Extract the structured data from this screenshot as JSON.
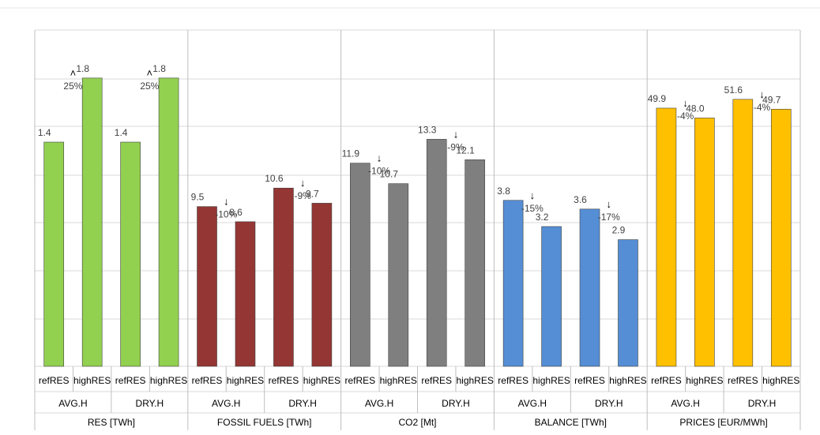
{
  "chart_data": {
    "type": "bar",
    "xlabel": "",
    "ylabel": "",
    "grid": true,
    "legend": "none",
    "series_labels": [
      "refRES",
      "highRES"
    ],
    "groups": [
      {
        "name": "RES [TWh]",
        "color": "#92D050",
        "max": 2.1,
        "subgroups": [
          {
            "name": "AVG.H",
            "values": [
              1.4,
              1.8
            ],
            "value_labels": [
              "1.4",
              "1.8"
            ],
            "change": "25%",
            "direction": "up"
          },
          {
            "name": "DRY.H",
            "values": [
              1.4,
              1.8
            ],
            "value_labels": [
              "1.4",
              "1.8"
            ],
            "change": "25%",
            "direction": "up"
          }
        ]
      },
      {
        "name": "FOSSIL FUELS [TWh]",
        "color": "#943634",
        "max": 20,
        "subgroups": [
          {
            "name": "AVG.H",
            "values": [
              9.5,
              8.6
            ],
            "value_labels": [
              "9.5",
              "8.6"
            ],
            "change": "-10%",
            "direction": "down"
          },
          {
            "name": "DRY.H",
            "values": [
              10.6,
              9.7
            ],
            "value_labels": [
              "10.6",
              "9.7"
            ],
            "change": "-9%",
            "direction": "down"
          }
        ]
      },
      {
        "name": "CO2 [Mt]",
        "color": "#7F7F7F",
        "max": 19.7,
        "subgroups": [
          {
            "name": "AVG.H",
            "values": [
              11.9,
              10.7
            ],
            "value_labels": [
              "11.9",
              "10.7"
            ],
            "change": "-10%",
            "direction": "down"
          },
          {
            "name": "DRY.H",
            "values": [
              13.3,
              12.1
            ],
            "value_labels": [
              "13.3",
              "12.1"
            ],
            "change": "-9%",
            "direction": "down"
          }
        ]
      },
      {
        "name": "BALANCE [TWh]",
        "color": "#558ED5",
        "max": 7.7,
        "subgroups": [
          {
            "name": "AVG.H",
            "values": [
              3.8,
              3.2
            ],
            "value_labels": [
              "3.8",
              "3.2"
            ],
            "change": "-15%",
            "direction": "down"
          },
          {
            "name": "DRY.H",
            "values": [
              3.6,
              2.9
            ],
            "value_labels": [
              "3.6",
              "2.9"
            ],
            "change": "-17%",
            "direction": "down"
          }
        ]
      },
      {
        "name": "PRICES [EUR/MWh]",
        "color": "#FFC000",
        "max": 65,
        "subgroups": [
          {
            "name": "AVG.H",
            "values": [
              49.9,
              48.0
            ],
            "value_labels": [
              "49.9",
              "48.0"
            ],
            "change": "-4%",
            "direction": "down"
          },
          {
            "name": "DRY.H",
            "values": [
              51.6,
              49.7
            ],
            "value_labels": [
              "51.6",
              "49.7"
            ],
            "change": "-4%",
            "direction": "down"
          }
        ]
      }
    ],
    "colors": {
      "increase_label": "#2E75B6",
      "decrease_label": "#FF0000",
      "gridline": "#D9D9D9",
      "value_label": "#404040"
    }
  }
}
